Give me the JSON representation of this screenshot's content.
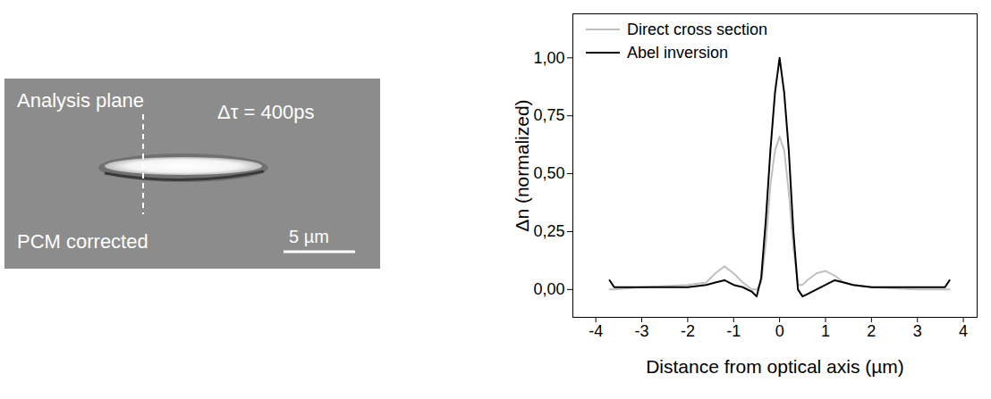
{
  "image": {
    "texts": [
      "Analysis plane",
      "Δτ = 400ps",
      "PCM corrected"
    ],
    "scale_bar": "5 µm"
  },
  "chart_data": {
    "type": "line",
    "x": [
      -3.7,
      -3.6,
      -3,
      -2,
      -1.6,
      -1.4,
      -1.2,
      -1,
      -0.8,
      -0.6,
      -0.5,
      -0.4,
      -0.3,
      -0.2,
      -0.1,
      0,
      0.1,
      0.2,
      0.3,
      0.4,
      0.5,
      0.6,
      0.8,
      1,
      1.2,
      1.4,
      1.6,
      2,
      3,
      3.6,
      3.7
    ],
    "series": [
      {
        "name": "Direct cross section",
        "color": "#c0c0c0",
        "values": [
          0,
          0,
          0.01,
          0.02,
          0.03,
          0.07,
          0.1,
          0.07,
          0.03,
          0,
          0,
          0.03,
          0.2,
          0.45,
          0.6,
          0.66,
          0.6,
          0.42,
          0.18,
          0.02,
          0.02,
          0.04,
          0.07,
          0.08,
          0.06,
          0.03,
          0.02,
          0.01,
          0,
          0,
          0
        ]
      },
      {
        "name": "Abel inversion",
        "color": "#000000",
        "values": [
          0.04,
          0.01,
          0.01,
          0.01,
          0.02,
          0.03,
          0.04,
          0.02,
          0.01,
          -0.01,
          -0.03,
          0.05,
          0.3,
          0.6,
          0.85,
          1.0,
          0.85,
          0.6,
          0.25,
          0,
          -0.03,
          -0.02,
          0,
          0.02,
          0.04,
          0.03,
          0.02,
          0.01,
          0.01,
          0.01,
          0.04
        ]
      }
    ],
    "xlabel": "Distance from optical axis (µm)",
    "ylabel": "Δn (normalized)",
    "xlim": [
      -4.5,
      4.3
    ],
    "ylim": [
      -0.12,
      1.19
    ],
    "xticks": [
      -4,
      -3,
      -2,
      -1,
      0,
      1,
      2,
      3,
      4
    ],
    "yticks": [
      {
        "value": 0,
        "label": "0,00"
      },
      {
        "value": 0.25,
        "label": "0,25"
      },
      {
        "value": 0.5,
        "label": "0,50"
      },
      {
        "value": 0.75,
        "label": "0,75"
      },
      {
        "value": 1,
        "label": "1,00"
      }
    ],
    "legend": "upper left",
    "grid": false
  }
}
